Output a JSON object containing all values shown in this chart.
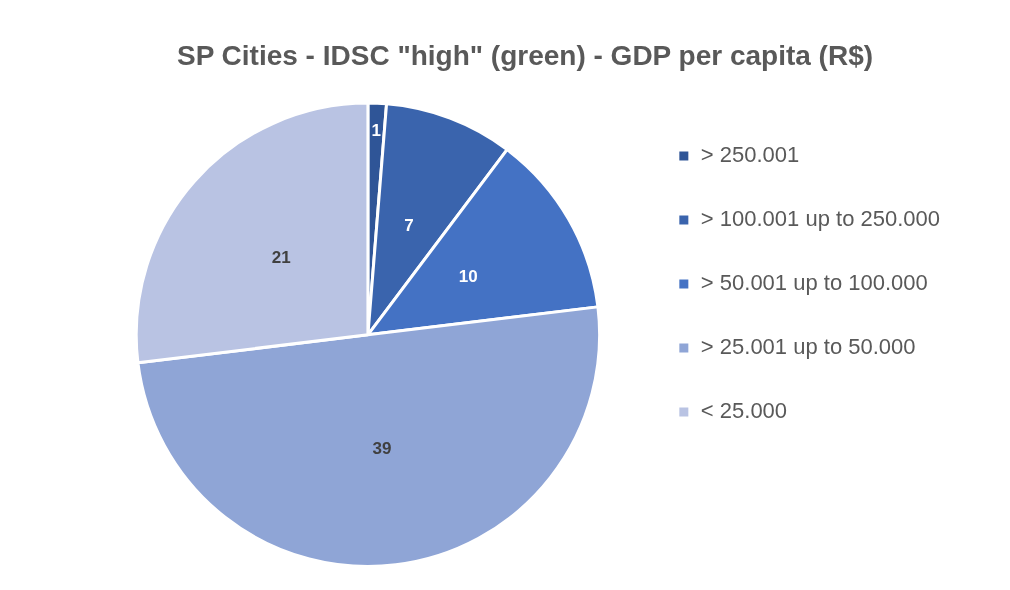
{
  "chart_data": {
    "type": "pie",
    "title": "SP Cities - IDSC \"high\" (green) - GDP per capita (R$)",
    "categories": [
      "> 250.001",
      "> 100.001 up to 250.000",
      "> 50.001 up to 100.000",
      "> 25.001 up to 50.000",
      "< 25.000"
    ],
    "values": [
      1,
      7,
      10,
      39,
      21
    ],
    "colors": [
      "#2f5597",
      "#3a64ad",
      "#4472c4",
      "#8fa5d6",
      "#b9c3e3"
    ],
    "data_labels": true,
    "legend": "right"
  }
}
